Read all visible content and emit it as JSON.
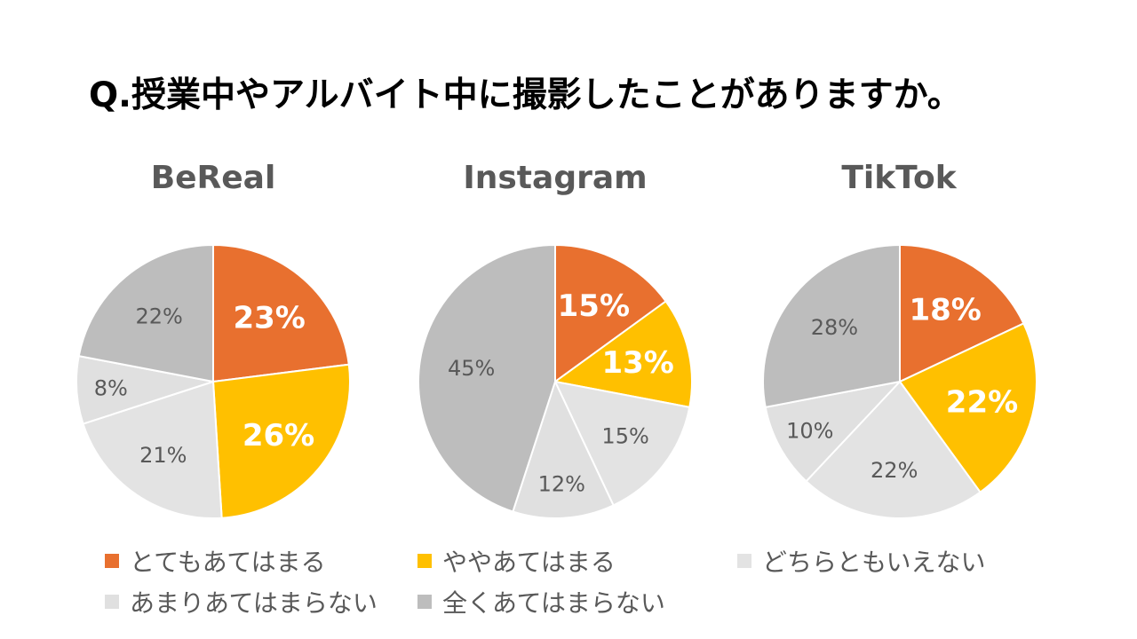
{
  "question": "Q.授業中やアルバイト中に撮影したことがありますか。",
  "colors": {
    "strong_agree": "#E8702F",
    "agree": "#FFC000",
    "neutral": "#E3E3E3",
    "disagree": "#E0E0E0",
    "strong_disagree": "#BDBDBD",
    "label_light": "#FFFFFF",
    "label_dark": "#595959"
  },
  "legend": [
    {
      "label": "とてもあてはまる",
      "color": "#E8702F"
    },
    {
      "label": "ややあてはまる",
      "color": "#FFC000"
    },
    {
      "label": "どちらともいえない",
      "color": "#E3E3E3"
    },
    {
      "label": "あまりあてはまらない",
      "color": "#E0E0E0"
    },
    {
      "label": "全くあてはまらない",
      "color": "#BDBDBD"
    }
  ],
  "chart_data": [
    {
      "type": "pie",
      "title": "BeReal",
      "categories": [
        "とてもあてはまる",
        "ややあてはまる",
        "どちらともいえない",
        "あまりあてはまらない",
        "全くあてはまらない"
      ],
      "values": [
        23,
        26,
        21,
        8,
        22
      ],
      "labels": [
        "23%",
        "26%",
        "21%",
        "8%",
        "22%"
      ]
    },
    {
      "type": "pie",
      "title": "Instagram",
      "categories": [
        "とてもあてはまる",
        "ややあてはまる",
        "どちらともいえない",
        "あまりあてはまらない",
        "全くあてはまらない"
      ],
      "values": [
        15,
        13,
        15,
        12,
        45
      ],
      "labels": [
        "15%",
        "13%",
        "15%",
        "12%",
        "45%"
      ]
    },
    {
      "type": "pie",
      "title": "TikTok",
      "categories": [
        "とてもあてはまる",
        "ややあてはまる",
        "どちらともいえない",
        "あまりあてはまらない",
        "全くあてはまらない"
      ],
      "values": [
        18,
        22,
        22,
        10,
        28
      ],
      "labels": [
        "18%",
        "22%",
        "22%",
        "10%",
        "28%"
      ]
    }
  ]
}
